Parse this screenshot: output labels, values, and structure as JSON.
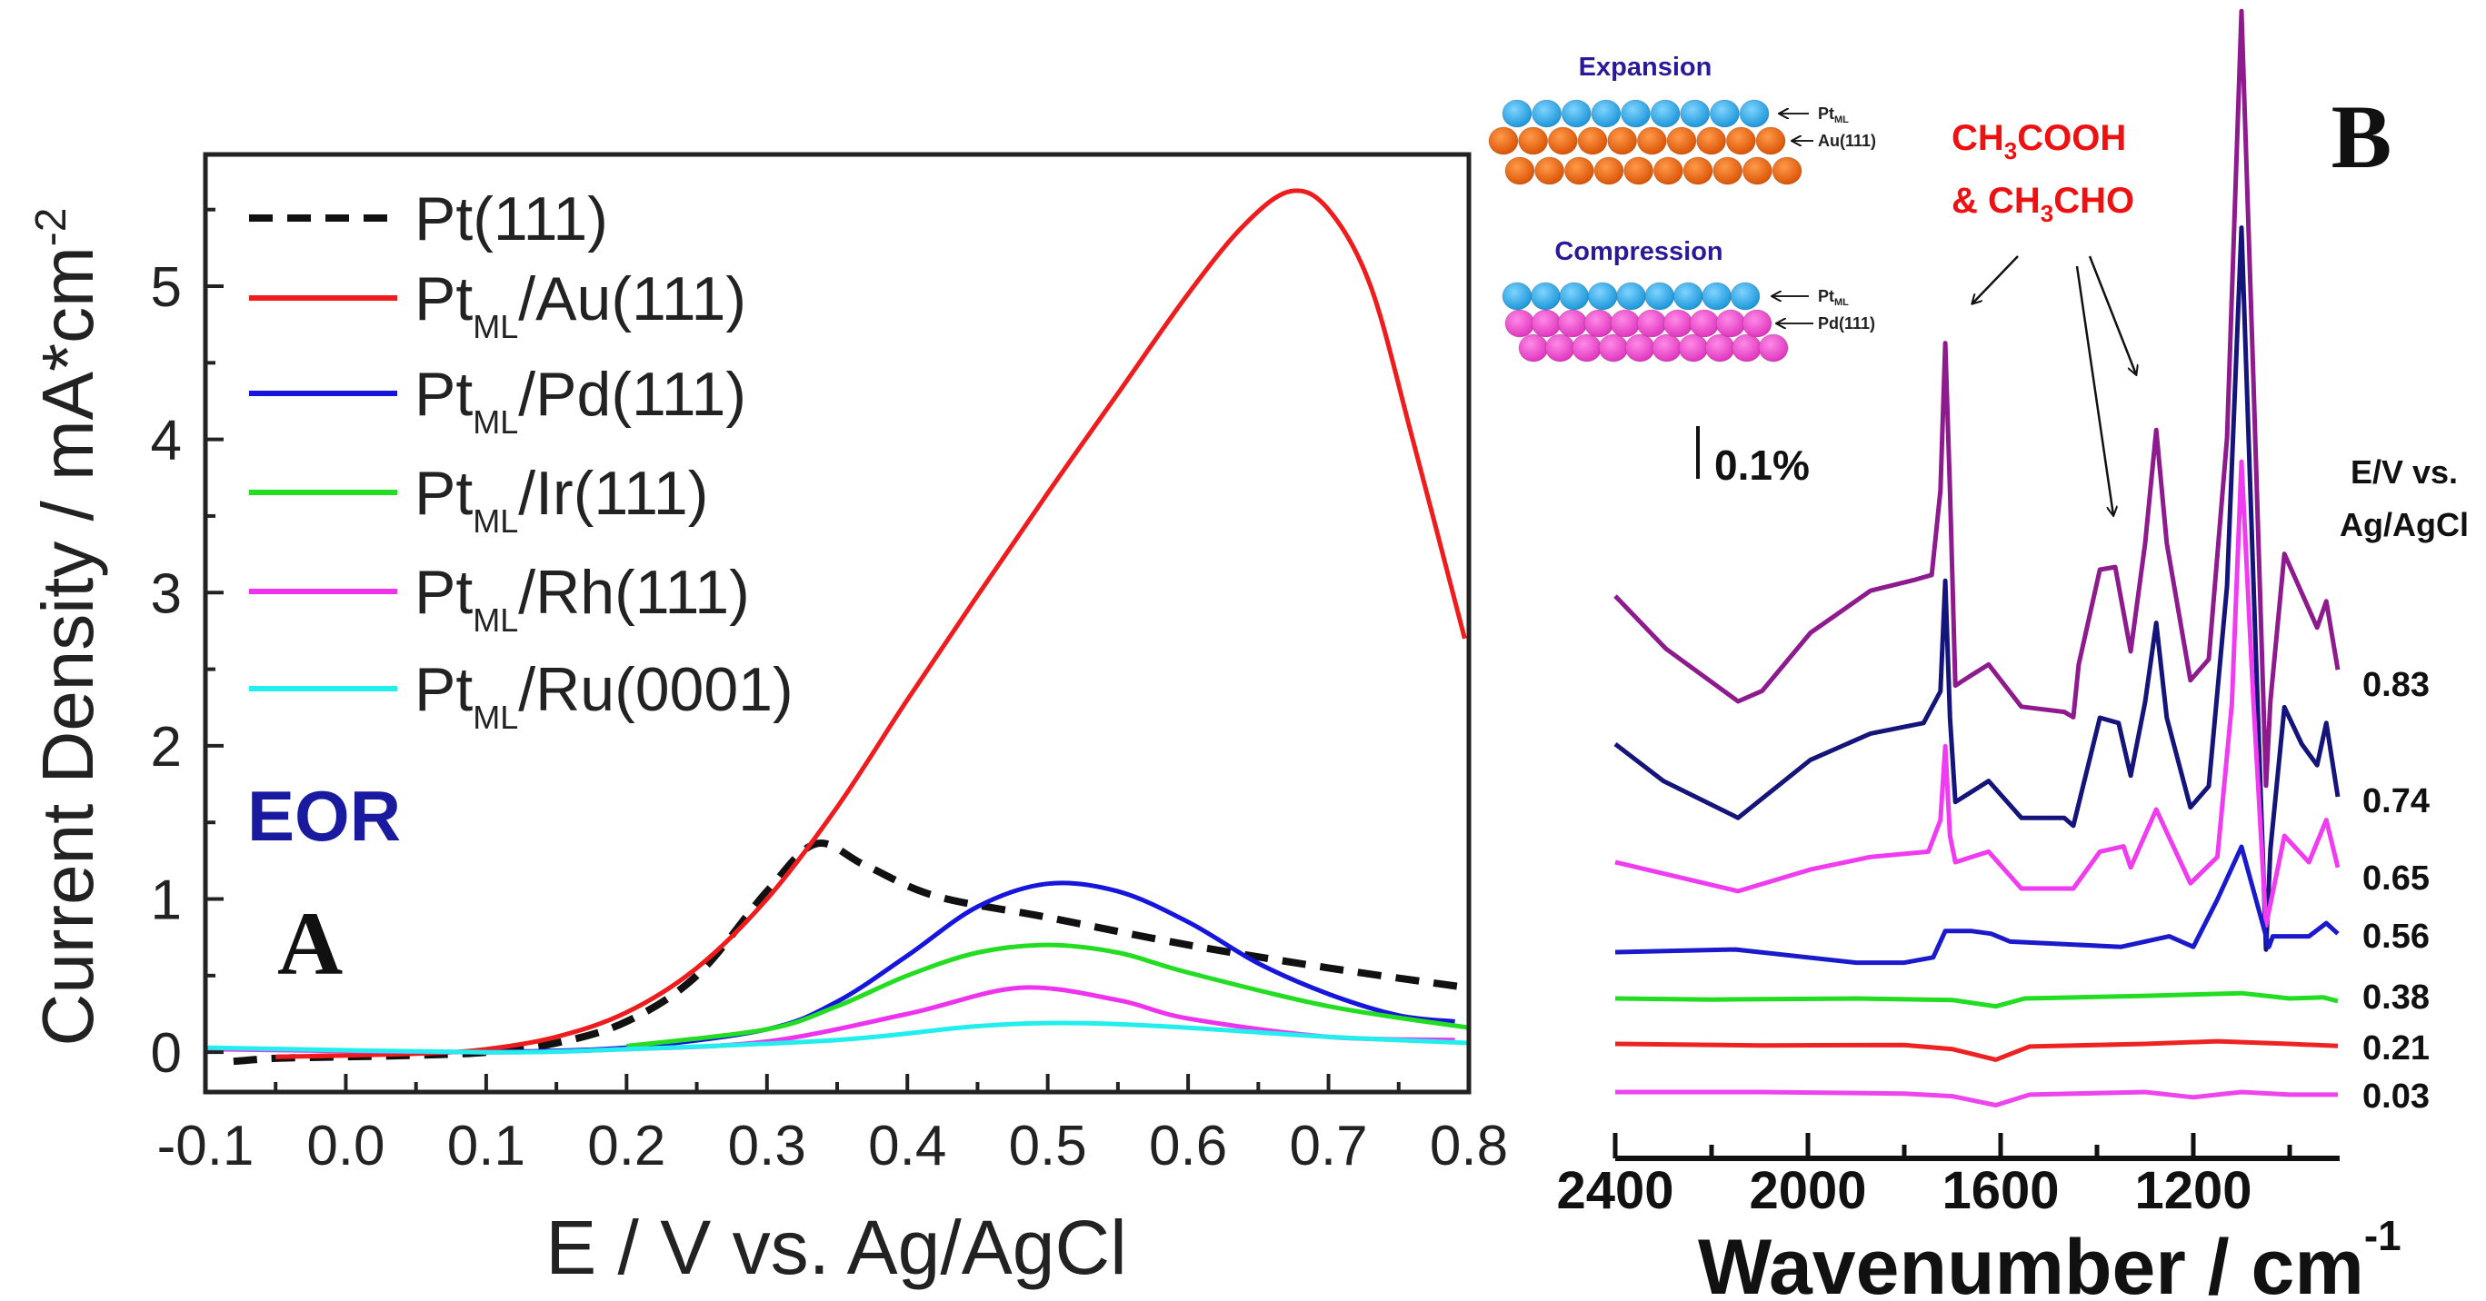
{
  "chart_data": [
    {
      "panel": "A",
      "type": "line",
      "title": "",
      "xlabel": "E / V vs. Ag/AgCl",
      "ylabel": "Current Density / mA*cm",
      "ylabel_sup": "-2",
      "xlim": [
        -0.1,
        0.8
      ],
      "ylim": [
        -0.26,
        5.86
      ],
      "xticks": [
        "-0.1",
        "0.0",
        "0.1",
        "0.2",
        "0.3",
        "0.4",
        "0.5",
        "0.6",
        "0.7",
        "0.8"
      ],
      "xtick_values": [
        -0.1,
        0.0,
        0.1,
        0.2,
        0.3,
        0.4,
        0.5,
        0.6,
        0.7,
        0.8
      ],
      "yticks": [
        "0",
        "1",
        "2",
        "3",
        "4",
        "5"
      ],
      "ytick_values": [
        0,
        1,
        2,
        3,
        4,
        5
      ],
      "legend_position": "top-left",
      "annotation": "EOR",
      "panel_label": "A",
      "series": [
        {
          "name": "Pt(111)",
          "label_main": "Pt(111)",
          "label_sub": "",
          "label_rest": "",
          "color": "#111111",
          "dashed": true,
          "points": [
            [
              -0.08,
              -0.06
            ],
            [
              -0.05,
              -0.04
            ],
            [
              0.0,
              -0.03
            ],
            [
              0.05,
              -0.02
            ],
            [
              0.1,
              0.0
            ],
            [
              0.15,
              0.06
            ],
            [
              0.2,
              0.2
            ],
            [
              0.25,
              0.5
            ],
            [
              0.3,
              1.05
            ],
            [
              0.335,
              1.36
            ],
            [
              0.37,
              1.22
            ],
            [
              0.42,
              1.02
            ],
            [
              0.5,
              0.88
            ],
            [
              0.6,
              0.7
            ],
            [
              0.7,
              0.55
            ],
            [
              0.8,
              0.42
            ]
          ]
        },
        {
          "name": "PtML/Au(111)",
          "label_main": "Pt",
          "label_sub": "ML",
          "label_rest": "/Au(111)",
          "color": "#ee1c1c",
          "dashed": false,
          "points": [
            [
              -0.05,
              -0.03
            ],
            [
              0.05,
              -0.01
            ],
            [
              0.1,
              0.02
            ],
            [
              0.15,
              0.1
            ],
            [
              0.2,
              0.26
            ],
            [
              0.25,
              0.55
            ],
            [
              0.3,
              1.0
            ],
            [
              0.35,
              1.6
            ],
            [
              0.4,
              2.3
            ],
            [
              0.45,
              2.98
            ],
            [
              0.5,
              3.65
            ],
            [
              0.55,
              4.3
            ],
            [
              0.6,
              4.95
            ],
            [
              0.64,
              5.4
            ],
            [
              0.673,
              5.62
            ],
            [
              0.7,
              5.5
            ],
            [
              0.73,
              5.0
            ],
            [
              0.76,
              4.0
            ],
            [
              0.797,
              2.7
            ]
          ]
        },
        {
          "name": "PtML/Pd(111)",
          "label_main": "Pt",
          "label_sub": "ML",
          "label_rest": "/Pd(111)",
          "color": "#1515dd",
          "dashed": false,
          "points": [
            [
              0.1,
              0.0
            ],
            [
              0.2,
              0.03
            ],
            [
              0.3,
              0.15
            ],
            [
              0.35,
              0.33
            ],
            [
              0.4,
              0.63
            ],
            [
              0.45,
              0.95
            ],
            [
              0.5,
              1.1
            ],
            [
              0.55,
              1.05
            ],
            [
              0.6,
              0.85
            ],
            [
              0.65,
              0.58
            ],
            [
              0.7,
              0.38
            ],
            [
              0.75,
              0.24
            ],
            [
              0.79,
              0.2
            ]
          ]
        },
        {
          "name": "PtML/Ir(111)",
          "label_main": "Pt",
          "label_sub": "ML",
          "label_rest": "/Ir(111)",
          "color": "#22dd22",
          "dashed": false,
          "points": [
            [
              0.2,
              0.04
            ],
            [
              0.3,
              0.15
            ],
            [
              0.35,
              0.3
            ],
            [
              0.4,
              0.5
            ],
            [
              0.45,
              0.65
            ],
            [
              0.5,
              0.7
            ],
            [
              0.55,
              0.65
            ],
            [
              0.6,
              0.52
            ],
            [
              0.7,
              0.3
            ],
            [
              0.8,
              0.16
            ]
          ]
        },
        {
          "name": "PtML/Rh(111)",
          "label_main": "Pt",
          "label_sub": "ML",
          "label_rest": "/Rh(111)",
          "color": "#ee33ee",
          "dashed": false,
          "points": [
            [
              -0.1,
              0.02
            ],
            [
              0.1,
              0.0
            ],
            [
              0.2,
              0.02
            ],
            [
              0.3,
              0.07
            ],
            [
              0.4,
              0.25
            ],
            [
              0.48,
              0.42
            ],
            [
              0.55,
              0.34
            ],
            [
              0.6,
              0.22
            ],
            [
              0.7,
              0.1
            ],
            [
              0.79,
              0.08
            ]
          ]
        },
        {
          "name": "PtML/Ru(0001)",
          "label_main": "Pt",
          "label_sub": "ML",
          "label_rest": "/Ru(0001)",
          "color": "#22eeee",
          "dashed": false,
          "points": [
            [
              -0.1,
              0.03
            ],
            [
              0.1,
              0.0
            ],
            [
              0.2,
              0.02
            ],
            [
              0.35,
              0.08
            ],
            [
              0.45,
              0.17
            ],
            [
              0.52,
              0.19
            ],
            [
              0.6,
              0.16
            ],
            [
              0.7,
              0.1
            ],
            [
              0.8,
              0.06
            ]
          ]
        }
      ]
    },
    {
      "panel": "B",
      "type": "line",
      "xlabel": "Wavenumber / cm",
      "xlabel_sup": "-1",
      "xlim": [
        2400,
        900
      ],
      "xticks": [
        "2400",
        "2000",
        "1600",
        "1200"
      ],
      "xtick_values": [
        2400,
        2000,
        1600,
        1200
      ],
      "minor_xtick_values": [
        2200,
        1800,
        1400,
        1000
      ],
      "scale_bar_label": "0.1%",
      "scale_bar_value": 0.1,
      "potential_header": [
        "E/V vs.",
        "Ag/AgCl"
      ],
      "panel_label": "B",
      "annotation": {
        "line1_a": "CH",
        "line1_sub": "3",
        "line1_b": "COOH",
        "line2_a": "& CH",
        "line2_sub": "3",
        "line2_b": "CHO"
      },
      "series": [
        {
          "potential": "0.83",
          "color": "#8e1b8e",
          "points": [
            [
              2400,
              0
            ],
            [
              2295,
              -0.1
            ],
            [
              2145,
              -0.2
            ],
            [
              2095,
              -0.18
            ],
            [
              1995,
              -0.07
            ],
            [
              1870,
              0.01
            ],
            [
              1781,
              0.03
            ],
            [
              1743,
              0.04
            ],
            [
              1725,
              0.2
            ],
            [
              1715,
              0.48
            ],
            [
              1705,
              0.2
            ],
            [
              1694,
              -0.17
            ],
            [
              1660,
              -0.15
            ],
            [
              1625,
              -0.13
            ],
            [
              1557,
              -0.21
            ],
            [
              1468,
              -0.22
            ],
            [
              1449,
              -0.23
            ],
            [
              1438,
              -0.13
            ],
            [
              1394,
              0.05
            ],
            [
              1362,
              0.055
            ],
            [
              1330,
              -0.105
            ],
            [
              1300,
              0.1
            ],
            [
              1277,
              0.315
            ],
            [
              1255,
              0.1
            ],
            [
              1206,
              -0.16
            ],
            [
              1168,
              -0.12
            ],
            [
              1130,
              0.3
            ],
            [
              1100,
              1.11
            ],
            [
              1075,
              0.4
            ],
            [
              1049,
              -0.36
            ],
            [
              1040,
              -0.2
            ],
            [
              1011,
              0.08
            ],
            [
              943,
              -0.06
            ],
            [
              924,
              -0.01
            ],
            [
              900,
              -0.14
            ]
          ]
        },
        {
          "potential": "0.74",
          "color": "#14147a",
          "points": [
            [
              2400,
              0
            ],
            [
              2300,
              -0.07
            ],
            [
              2145,
              -0.14
            ],
            [
              1995,
              -0.03
            ],
            [
              1870,
              0.02
            ],
            [
              1760,
              0.04
            ],
            [
              1725,
              0.1
            ],
            [
              1715,
              0.31
            ],
            [
              1705,
              0.05
            ],
            [
              1694,
              -0.11
            ],
            [
              1625,
              -0.07
            ],
            [
              1557,
              -0.14
            ],
            [
              1468,
              -0.14
            ],
            [
              1449,
              -0.155
            ],
            [
              1394,
              0.05
            ],
            [
              1355,
              0.04
            ],
            [
              1330,
              -0.06
            ],
            [
              1300,
              0.08
            ],
            [
              1277,
              0.23
            ],
            [
              1255,
              0.05
            ],
            [
              1206,
              -0.12
            ],
            [
              1168,
              -0.08
            ],
            [
              1130,
              0.3
            ],
            [
              1100,
              0.98
            ],
            [
              1075,
              0.3
            ],
            [
              1049,
              -0.39
            ],
            [
              1040,
              -0.2
            ],
            [
              1011,
              0.07
            ],
            [
              975,
              0.0
            ],
            [
              943,
              -0.04
            ],
            [
              924,
              0.04
            ],
            [
              900,
              -0.1
            ]
          ]
        },
        {
          "potential": "0.65",
          "color": "#f03cf0",
          "points": [
            [
              2400,
              0
            ],
            [
              2145,
              -0.055
            ],
            [
              1995,
              -0.014
            ],
            [
              1870,
              0.01
            ],
            [
              1750,
              0.02
            ],
            [
              1725,
              0.08
            ],
            [
              1715,
              0.22
            ],
            [
              1705,
              0.05
            ],
            [
              1694,
              0.0
            ],
            [
              1625,
              0.02
            ],
            [
              1557,
              -0.05
            ],
            [
              1449,
              -0.05
            ],
            [
              1394,
              0.02
            ],
            [
              1345,
              0.03
            ],
            [
              1330,
              -0.01
            ],
            [
              1277,
              0.1
            ],
            [
              1206,
              -0.04
            ],
            [
              1150,
              0.01
            ],
            [
              1120,
              0.3
            ],
            [
              1100,
              0.76
            ],
            [
              1075,
              0.3
            ],
            [
              1049,
              -0.12
            ],
            [
              1011,
              0.05
            ],
            [
              960,
              0.0
            ],
            [
              924,
              0.08
            ],
            [
              900,
              -0.01
            ]
          ]
        },
        {
          "potential": "0.56",
          "color": "#1a1acc",
          "points": [
            [
              2400,
              0
            ],
            [
              2150,
              0.005
            ],
            [
              1900,
              -0.02
            ],
            [
              1800,
              -0.02
            ],
            [
              1740,
              -0.01
            ],
            [
              1715,
              0.04
            ],
            [
              1660,
              0.04
            ],
            [
              1620,
              0.035
            ],
            [
              1580,
              0.02
            ],
            [
              1350,
              0.01
            ],
            [
              1250,
              0.03
            ],
            [
              1200,
              0.01
            ],
            [
              1150,
              0.1
            ],
            [
              1100,
              0.2
            ],
            [
              1070,
              0.1
            ],
            [
              1043,
              0.01
            ],
            [
              1035,
              0.03
            ],
            [
              960,
              0.03
            ],
            [
              924,
              0.055
            ],
            [
              900,
              0.035
            ]
          ]
        },
        {
          "potential": "0.38",
          "color": "#22dd22",
          "points": [
            [
              2400,
              0
            ],
            [
              2200,
              -0.002
            ],
            [
              1900,
              0.0
            ],
            [
              1700,
              -0.003
            ],
            [
              1610,
              -0.015
            ],
            [
              1550,
              0.0
            ],
            [
              1300,
              0.005
            ],
            [
              1100,
              0.01
            ],
            [
              1000,
              0.0
            ],
            [
              930,
              0.002
            ],
            [
              900,
              -0.005
            ]
          ]
        },
        {
          "potential": "0.21",
          "color": "#ee2222",
          "points": [
            [
              2400,
              0
            ],
            [
              2100,
              -0.003
            ],
            [
              1800,
              -0.002
            ],
            [
              1700,
              -0.01
            ],
            [
              1610,
              -0.03
            ],
            [
              1540,
              -0.005
            ],
            [
              1300,
              0.0
            ],
            [
              1150,
              0.005
            ],
            [
              1000,
              0.0
            ],
            [
              900,
              -0.004
            ]
          ]
        },
        {
          "potential": "0.03",
          "color": "#ee44ee",
          "points": [
            [
              2400,
              0
            ],
            [
              2100,
              0.0
            ],
            [
              1800,
              -0.003
            ],
            [
              1700,
              -0.008
            ],
            [
              1610,
              -0.025
            ],
            [
              1540,
              -0.005
            ],
            [
              1300,
              0.0
            ],
            [
              1200,
              -0.01
            ],
            [
              1100,
              0.0
            ],
            [
              1000,
              -0.005
            ],
            [
              900,
              -0.005
            ]
          ]
        }
      ]
    }
  ],
  "schematic": {
    "expansion_title": "Expansion",
    "compression_title": "Compression",
    "pt_label_main": "Pt",
    "pt_label_sub": "ML",
    "au_label": "Au(111)",
    "pd_label": "Pd(111)",
    "colors": {
      "pt": "#1ea8e8",
      "au": "#f0640a",
      "pd": "#ee44cc",
      "title": "#2a1a99"
    }
  }
}
